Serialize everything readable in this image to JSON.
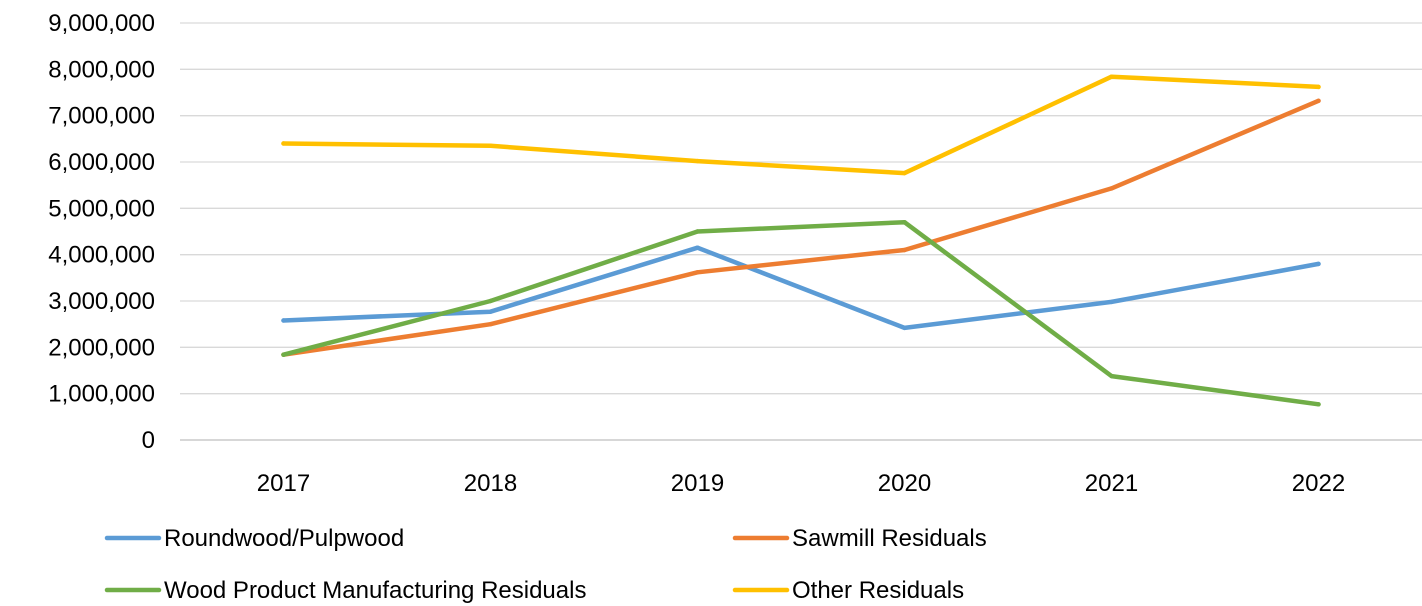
{
  "chart_data": {
    "type": "line",
    "title": "",
    "xlabel": "",
    "ylabel": "",
    "categories": [
      "2017",
      "2018",
      "2019",
      "2020",
      "2021",
      "2022"
    ],
    "ylim": [
      0,
      9000000
    ],
    "yticks": [
      "0",
      "1,000,000",
      "2,000,000",
      "3,000,000",
      "4,000,000",
      "5,000,000",
      "6,000,000",
      "7,000,000",
      "8,000,000",
      "9,000,000"
    ],
    "grid": true,
    "legend_position": "bottom",
    "series": [
      {
        "name": "Roundwood/Pulpwood",
        "color": "#5B9BD5",
        "values": [
          2580000,
          2770000,
          4150000,
          2420000,
          2980000,
          3800000
        ]
      },
      {
        "name": "Sawmill Residuals",
        "color": "#ED7D31",
        "values": [
          1840000,
          2500000,
          3620000,
          4100000,
          5430000,
          7320000
        ]
      },
      {
        "name": "Wood Product Manufacturing Residuals",
        "color": "#70AD47",
        "values": [
          1840000,
          3000000,
          4500000,
          4700000,
          1380000,
          770000
        ]
      },
      {
        "name": "Other Residuals",
        "color": "#FFC000",
        "values": [
          6400000,
          6350000,
          6020000,
          5760000,
          7840000,
          7620000
        ]
      }
    ]
  }
}
